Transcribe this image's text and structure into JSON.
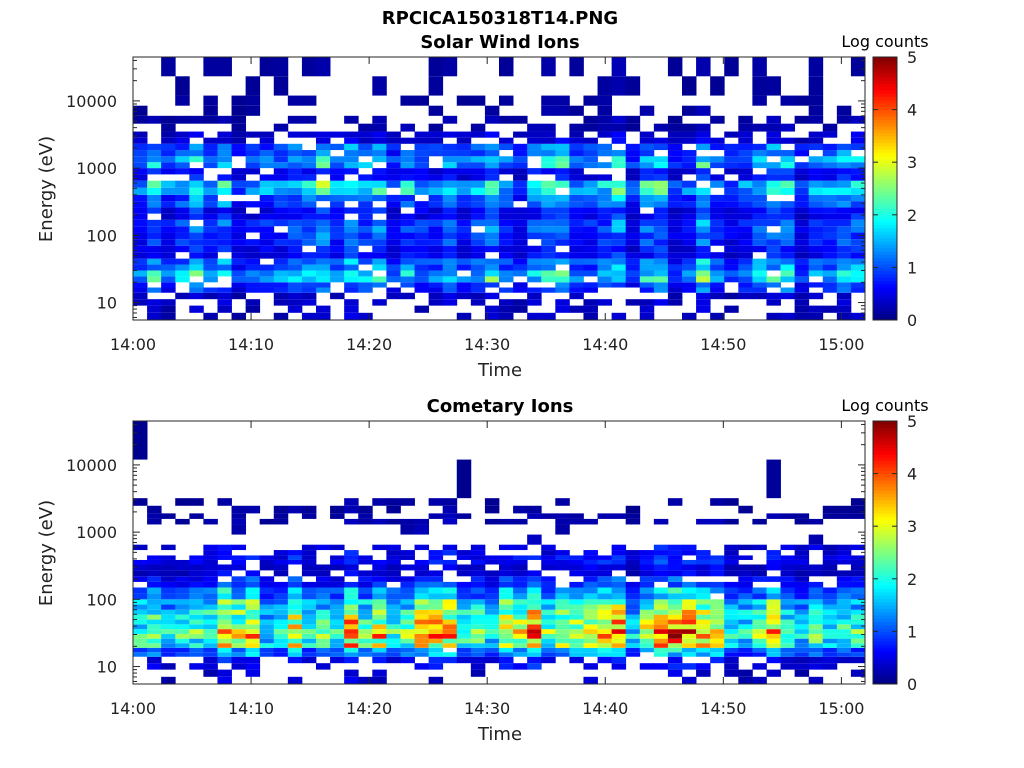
{
  "figure_title": "RPCICA150318T14.PNG",
  "colormap": [
    "#00007f",
    "#0000ff",
    "#007fff",
    "#00ffff",
    "#7fff7f",
    "#ffff00",
    "#ff7f00",
    "#ff0000",
    "#7f0000"
  ],
  "chart_data": [
    {
      "type": "heatmap",
      "title": "Solar Wind Ions",
      "xlabel": "Time",
      "ylabel": "Energy (eV)",
      "x_range_min": [
        840,
        902
      ],
      "x_ticks": [
        {
          "min": 840,
          "label": "14:00"
        },
        {
          "min": 850,
          "label": "14:10"
        },
        {
          "min": 860,
          "label": "14:20"
        },
        {
          "min": 870,
          "label": "14:30"
        },
        {
          "min": 880,
          "label": "14:40"
        },
        {
          "min": 890,
          "label": "14:50"
        },
        {
          "min": 900,
          "label": "15:00"
        }
      ],
      "y_scale": "log",
      "y_range": [
        5.5,
        45000
      ],
      "y_ticks": [
        {
          "value": 10,
          "label": "10"
        },
        {
          "value": 100,
          "label": "100"
        },
        {
          "value": 1000,
          "label": "1000"
        },
        {
          "value": 10000,
          "label": "10000"
        }
      ],
      "colorbar": {
        "label": "Log counts",
        "range": [
          0,
          5
        ],
        "ticks": [
          "0",
          "1",
          "2",
          "3",
          "4",
          "5"
        ]
      },
      "bands": [
        {
          "emin": 5.5,
          "emax": 9,
          "level": 0.3,
          "cover": 0.45
        },
        {
          "emin": 9,
          "emax": 14,
          "level": 0.35,
          "cover": 0.55
        },
        {
          "emin": 14,
          "emax": 20,
          "level": 0.8,
          "cover": 0.75
        },
        {
          "emin": 20,
          "emax": 30,
          "level": 1.5,
          "cover": 0.9
        },
        {
          "emin": 30,
          "emax": 45,
          "level": 1.1,
          "cover": 0.95
        },
        {
          "emin": 45,
          "emax": 70,
          "level": 0.6,
          "cover": 0.95
        },
        {
          "emin": 70,
          "emax": 110,
          "level": 0.8,
          "cover": 0.97
        },
        {
          "emin": 110,
          "emax": 170,
          "level": 0.9,
          "cover": 0.97
        },
        {
          "emin": 170,
          "emax": 260,
          "level": 0.6,
          "cover": 0.95
        },
        {
          "emin": 260,
          "emax": 400,
          "level": 1.0,
          "cover": 0.92
        },
        {
          "emin": 400,
          "emax": 650,
          "level": 1.6,
          "cover": 0.95
        },
        {
          "emin": 650,
          "emax": 1000,
          "level": 0.6,
          "cover": 0.8
        },
        {
          "emin": 1000,
          "emax": 1500,
          "level": 1.3,
          "cover": 0.85
        },
        {
          "emin": 1500,
          "emax": 2300,
          "level": 1.0,
          "cover": 0.85
        },
        {
          "emin": 2300,
          "emax": 3500,
          "level": 0.4,
          "cover": 0.7
        },
        {
          "emin": 3500,
          "emax": 6000,
          "level": 0.2,
          "cover": 0.45
        },
        {
          "emin": 6000,
          "emax": 12000,
          "level": 0.15,
          "cover": 0.35
        },
        {
          "emin": 12000,
          "emax": 45000,
          "level": 0.15,
          "cover": 0.3
        }
      ],
      "columns": 52,
      "seed": 17
    },
    {
      "type": "heatmap",
      "title": "Cometary Ions",
      "xlabel": "Time",
      "ylabel": "Energy (eV)",
      "x_range_min": [
        840,
        902
      ],
      "x_ticks": [
        {
          "min": 840,
          "label": "14:00"
        },
        {
          "min": 850,
          "label": "14:10"
        },
        {
          "min": 860,
          "label": "14:20"
        },
        {
          "min": 870,
          "label": "14:30"
        },
        {
          "min": 880,
          "label": "14:40"
        },
        {
          "min": 890,
          "label": "14:50"
        },
        {
          "min": 900,
          "label": "15:00"
        }
      ],
      "y_scale": "log",
      "y_range": [
        5.5,
        45000
      ],
      "y_ticks": [
        {
          "value": 10,
          "label": "10"
        },
        {
          "value": 100,
          "label": "100"
        },
        {
          "value": 1000,
          "label": "1000"
        },
        {
          "value": 10000,
          "label": "10000"
        }
      ],
      "colorbar": {
        "label": "Log counts",
        "range": [
          0,
          5
        ],
        "ticks": [
          "0",
          "1",
          "2",
          "3",
          "4",
          "5"
        ]
      },
      "bands": [
        {
          "emin": 5.5,
          "emax": 9,
          "level": 0.3,
          "cover": 0.2
        },
        {
          "emin": 9,
          "emax": 14,
          "level": 0.5,
          "cover": 0.55
        },
        {
          "emin": 14,
          "emax": 19,
          "level": 1.2,
          "cover": 0.97
        },
        {
          "emin": 19,
          "emax": 26,
          "level": 2.3,
          "cover": 1.0
        },
        {
          "emin": 26,
          "emax": 36,
          "level": 2.8,
          "cover": 1.0
        },
        {
          "emin": 36,
          "emax": 50,
          "level": 2.3,
          "cover": 1.0
        },
        {
          "emin": 50,
          "emax": 70,
          "level": 2.1,
          "cover": 1.0
        },
        {
          "emin": 70,
          "emax": 100,
          "level": 1.8,
          "cover": 1.0
        },
        {
          "emin": 100,
          "emax": 150,
          "level": 1.2,
          "cover": 0.97
        },
        {
          "emin": 150,
          "emax": 220,
          "level": 0.7,
          "cover": 0.85
        },
        {
          "emin": 220,
          "emax": 330,
          "level": 0.4,
          "cover": 0.8
        },
        {
          "emin": 330,
          "emax": 450,
          "level": 0.6,
          "cover": 0.8
        },
        {
          "emin": 450,
          "emax": 650,
          "level": 0.5,
          "cover": 0.6
        },
        {
          "emin": 650,
          "emax": 1300,
          "level": 0.2,
          "cover": 0.05
        },
        {
          "emin": 1300,
          "emax": 1900,
          "level": 0.2,
          "cover": 0.6
        },
        {
          "emin": 1900,
          "emax": 3200,
          "level": 0.15,
          "cover": 0.3
        },
        {
          "emin": 3200,
          "emax": 45000,
          "level": 0.1,
          "cover": 0.03
        }
      ],
      "columns": 52,
      "seed": 29
    }
  ]
}
